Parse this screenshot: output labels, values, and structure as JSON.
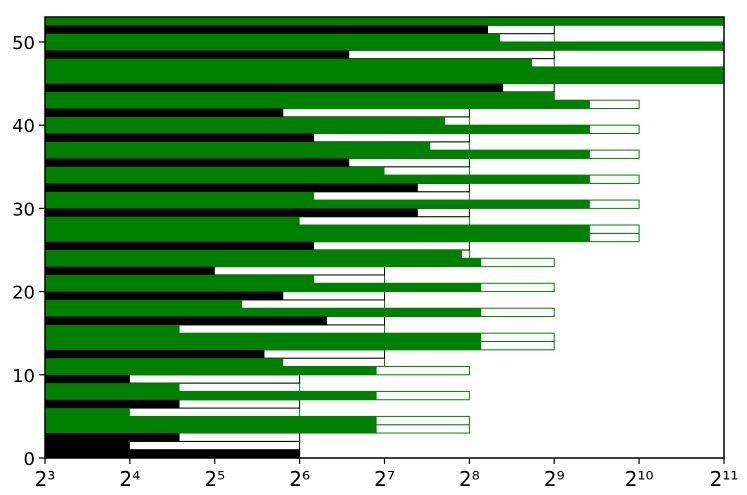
{
  "chart_data": {
    "type": "barh",
    "log_base": 2,
    "xlim": [
      8,
      2048
    ],
    "xticks": [
      {
        "value": 8,
        "label": "2³"
      },
      {
        "value": 16,
        "label": "2⁴"
      },
      {
        "value": 32,
        "label": "2⁵"
      },
      {
        "value": 64,
        "label": "2⁶"
      },
      {
        "value": 128,
        "label": "2⁷"
      },
      {
        "value": 256,
        "label": "2⁸"
      },
      {
        "value": 512,
        "label": "2⁹"
      },
      {
        "value": 1024,
        "label": "2¹⁰"
      },
      {
        "value": 2048,
        "label": "2¹¹"
      }
    ],
    "ylim": [
      0,
      53
    ],
    "yticks": [
      0,
      10,
      20,
      30,
      40,
      50
    ],
    "y": [
      0,
      1,
      2,
      3,
      4,
      5,
      6,
      7,
      8,
      9,
      10,
      11,
      12,
      13,
      14,
      15,
      16,
      17,
      18,
      19,
      20,
      21,
      22,
      23,
      24,
      25,
      26,
      27,
      28,
      29,
      30,
      31,
      32,
      33,
      34,
      35,
      36,
      37,
      38,
      39,
      40,
      41,
      42,
      43,
      44,
      45,
      46,
      47,
      48,
      49,
      50,
      51,
      52
    ],
    "colors": [
      "#000000",
      "#000000",
      "#000000",
      "#008000",
      "#008000",
      "#008000",
      "#000000",
      "#008000",
      "#008000",
      "#000000",
      "#008000",
      "#008000",
      "#000000",
      "#008000",
      "#008000",
      "#008000",
      "#000000",
      "#008000",
      "#008000",
      "#000000",
      "#008000",
      "#008000",
      "#000000",
      "#008000",
      "#008000",
      "#000000",
      "#008000",
      "#008000",
      "#008000",
      "#000000",
      "#008000",
      "#008000",
      "#000000",
      "#008000",
      "#008000",
      "#000000",
      "#008000",
      "#008000",
      "#000000",
      "#008000",
      "#008000",
      "#000000",
      "#008000",
      "#008000",
      "#000000",
      "#008000",
      "#008000",
      "#008000",
      "#000000",
      "#008000",
      "#008000",
      "#000000",
      "#008000"
    ],
    "series": [
      {
        "style": "outline",
        "values": [
          64,
          64,
          64,
          256,
          256,
          64,
          64,
          256,
          64,
          64,
          256,
          128,
          128,
          512,
          512,
          128,
          128,
          512,
          128,
          128,
          512,
          128,
          128,
          512,
          256,
          256,
          1024,
          1024,
          256,
          256,
          1024,
          256,
          256,
          1024,
          256,
          256,
          1024,
          256,
          256,
          1024,
          256,
          256,
          1024,
          512,
          512,
          2048,
          2048,
          512,
          512,
          2048,
          512,
          512,
          2048
        ]
      },
      {
        "style": "filled",
        "values": [
          64,
          16,
          24,
          120,
          120,
          16,
          24,
          120,
          24,
          16,
          120,
          56,
          48,
          282,
          282,
          24,
          80,
          282,
          40,
          56,
          282,
          72,
          32,
          282,
          241,
          72,
          685,
          685,
          64,
          168,
          685,
          72,
          168,
          685,
          128,
          96,
          685,
          186,
          72,
          685,
          210,
          56,
          685,
          512,
          337,
          2048,
          2048,
          427,
          96,
          2048,
          329,
          298,
          2048
        ]
      }
    ]
  }
}
